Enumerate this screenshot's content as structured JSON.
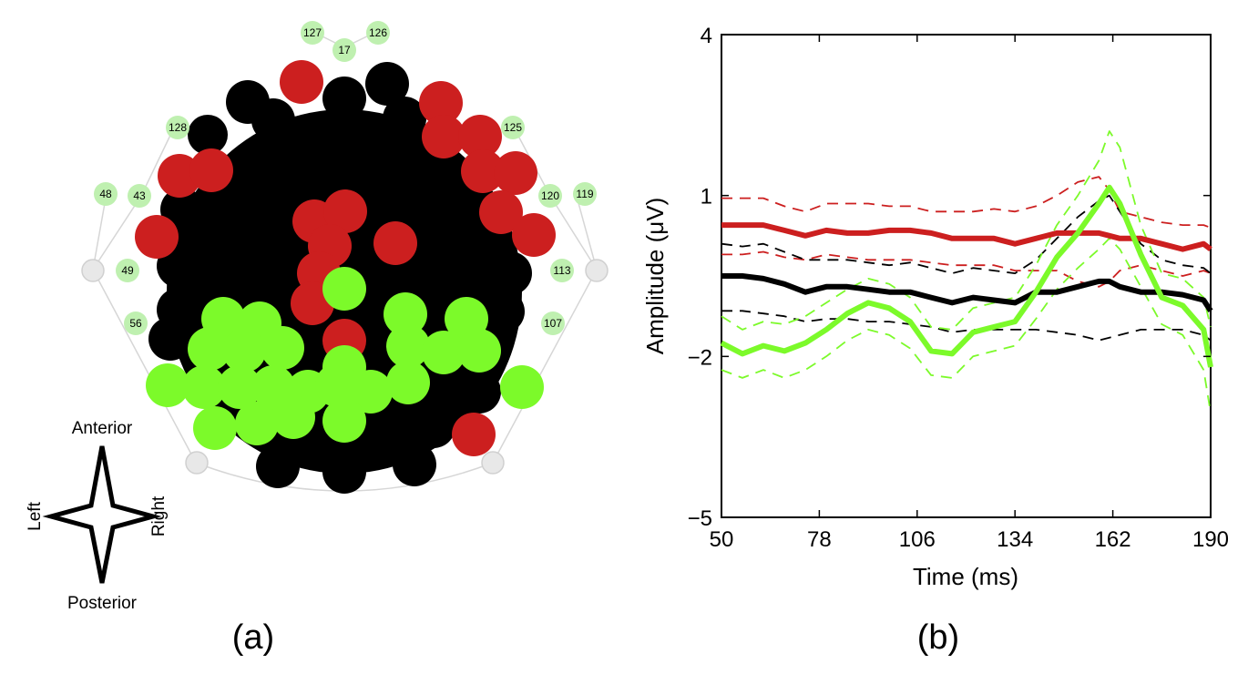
{
  "figure": {
    "panel_a_label": "(a)",
    "panel_b_label": "(b)"
  },
  "topomap": {
    "compass": {
      "anterior": "Anterior",
      "posterior": "Posterior",
      "left": "Left",
      "right": "Right"
    },
    "electrode_labels": [
      "127",
      "17",
      "126",
      "128",
      "125",
      "48",
      "43",
      "120",
      "119",
      "49",
      "113",
      "56",
      "107"
    ],
    "colors": {
      "black": "#000000",
      "red": "#cc1f1f",
      "green": "#7cfa2a"
    }
  },
  "chart_data": {
    "type": "line",
    "title": "",
    "xlabel": "Time (ms)",
    "ylabel": "Amplitude (μV)",
    "xlim": [
      50,
      190
    ],
    "ylim": [
      -5,
      4
    ],
    "xticks": [
      50,
      78,
      106,
      134,
      162,
      190
    ],
    "yticks": [
      -5,
      -2,
      1,
      4
    ],
    "grid": false,
    "x": [
      50,
      56,
      62,
      68,
      74,
      80,
      86,
      92,
      98,
      104,
      110,
      116,
      122,
      128,
      134,
      140,
      146,
      152,
      158,
      161,
      164,
      170,
      176,
      182,
      188,
      190
    ],
    "series": [
      {
        "color": "#cc1f1f",
        "style": "mean",
        "values": [
          0.45,
          0.45,
          0.45,
          0.35,
          0.25,
          0.35,
          0.3,
          0.3,
          0.35,
          0.35,
          0.3,
          0.2,
          0.2,
          0.2,
          0.1,
          0.2,
          0.3,
          0.3,
          0.3,
          0.25,
          0.2,
          0.2,
          0.1,
          0.0,
          0.1,
          0.0
        ]
      },
      {
        "color": "#cc1f1f",
        "style": "bound",
        "values": [
          0.95,
          0.95,
          0.95,
          0.8,
          0.7,
          0.85,
          0.85,
          0.85,
          0.8,
          0.8,
          0.7,
          0.7,
          0.7,
          0.75,
          0.7,
          0.8,
          1.0,
          1.25,
          1.35,
          1.1,
          0.7,
          0.6,
          0.5,
          0.45,
          0.45,
          0.4
        ]
      },
      {
        "color": "#cc1f1f",
        "style": "bound",
        "values": [
          -0.1,
          -0.1,
          -0.05,
          -0.15,
          -0.2,
          -0.1,
          -0.15,
          -0.2,
          -0.2,
          -0.2,
          -0.25,
          -0.3,
          -0.3,
          -0.3,
          -0.4,
          -0.4,
          -0.4,
          -0.6,
          -0.7,
          -0.6,
          -0.4,
          -0.3,
          -0.4,
          -0.5,
          -0.4,
          -0.45
        ]
      },
      {
        "color": "#000000",
        "style": "mean",
        "values": [
          -0.5,
          -0.5,
          -0.55,
          -0.65,
          -0.8,
          -0.7,
          -0.7,
          -0.75,
          -0.8,
          -0.8,
          -0.9,
          -1.0,
          -0.9,
          -0.95,
          -1.0,
          -0.8,
          -0.8,
          -0.7,
          -0.6,
          -0.6,
          -0.7,
          -0.8,
          -0.8,
          -0.85,
          -0.95,
          -1.15
        ]
      },
      {
        "color": "#000000",
        "style": "bound",
        "values": [
          0.1,
          0.05,
          0.1,
          -0.05,
          -0.2,
          -0.2,
          -0.2,
          -0.25,
          -0.3,
          -0.25,
          -0.35,
          -0.45,
          -0.35,
          -0.4,
          -0.45,
          -0.2,
          0.2,
          0.6,
          0.9,
          1.0,
          0.7,
          0.1,
          -0.2,
          -0.3,
          -0.35,
          -0.45
        ]
      },
      {
        "color": "#000000",
        "style": "bound",
        "values": [
          -1.15,
          -1.15,
          -1.2,
          -1.25,
          -1.35,
          -1.3,
          -1.3,
          -1.35,
          -1.35,
          -1.4,
          -1.45,
          -1.55,
          -1.5,
          -1.5,
          -1.5,
          -1.5,
          -1.55,
          -1.6,
          -1.7,
          -1.65,
          -1.6,
          -1.5,
          -1.5,
          -1.5,
          -1.6,
          -1.7
        ]
      },
      {
        "color": "#7cfa2a",
        "style": "mean",
        "values": [
          -1.75,
          -1.95,
          -1.8,
          -1.9,
          -1.75,
          -1.5,
          -1.2,
          -1.0,
          -1.1,
          -1.35,
          -1.9,
          -1.95,
          -1.55,
          -1.45,
          -1.35,
          -0.8,
          -0.15,
          0.3,
          0.85,
          1.15,
          0.85,
          -0.1,
          -0.9,
          -1.05,
          -1.5,
          -2.2
        ]
      },
      {
        "color": "#7cfa2a",
        "style": "bound",
        "values": [
          -1.25,
          -1.5,
          -1.35,
          -1.4,
          -1.25,
          -1.0,
          -0.75,
          -0.55,
          -0.65,
          -0.9,
          -1.45,
          -1.5,
          -1.1,
          -1.0,
          -0.9,
          -0.3,
          0.45,
          1.0,
          1.65,
          2.2,
          1.9,
          0.45,
          -0.45,
          -0.55,
          -0.9,
          -1.45
        ]
      },
      {
        "color": "#7cfa2a",
        "style": "bound",
        "values": [
          -2.25,
          -2.4,
          -2.25,
          -2.4,
          -2.25,
          -2.0,
          -1.7,
          -1.5,
          -1.6,
          -1.85,
          -2.35,
          -2.4,
          -2.0,
          -1.9,
          -1.8,
          -1.3,
          -0.75,
          -0.35,
          0.0,
          0.2,
          0.0,
          -0.7,
          -1.4,
          -1.6,
          -2.25,
          -3.05
        ]
      }
    ]
  }
}
